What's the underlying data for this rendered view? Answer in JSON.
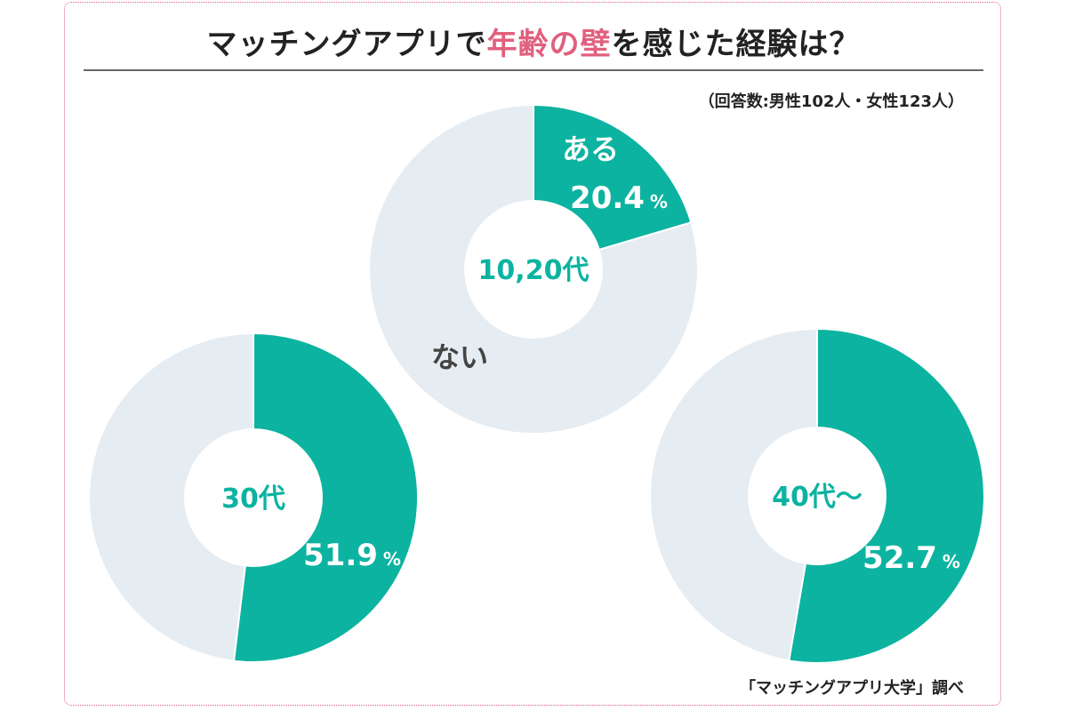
{
  "title": {
    "prefix": "マッチングアプリで",
    "highlight": "年齢の壁",
    "suffix": "を感じた経験は？"
  },
  "respondents_note": "（回答数:男性102人・女性123人）",
  "source_note": "「マッチングアプリ大学」調べ",
  "colors": {
    "yes": "#0cb3a0",
    "no": "#e5ecf2",
    "center_text": "#0cb3a0",
    "no_label_text": "#444444",
    "highlight": "#e0607e"
  },
  "chart_data": [
    {
      "type": "pie",
      "center_label": "10,20代",
      "slices": [
        {
          "label": "ある",
          "value": 20.4,
          "display": "20.4",
          "unit": "%"
        },
        {
          "label": "ない",
          "value": 79.6
        }
      ]
    },
    {
      "type": "pie",
      "center_label": "30代",
      "slices": [
        {
          "label": "",
          "value": 51.9,
          "display": "51.9",
          "unit": "%"
        },
        {
          "label": "",
          "value": 48.1
        }
      ]
    },
    {
      "type": "pie",
      "center_label": "40代〜",
      "slices": [
        {
          "label": "",
          "value": 52.7,
          "display": "52.7",
          "unit": "%"
        },
        {
          "label": "",
          "value": 47.3
        }
      ]
    }
  ]
}
